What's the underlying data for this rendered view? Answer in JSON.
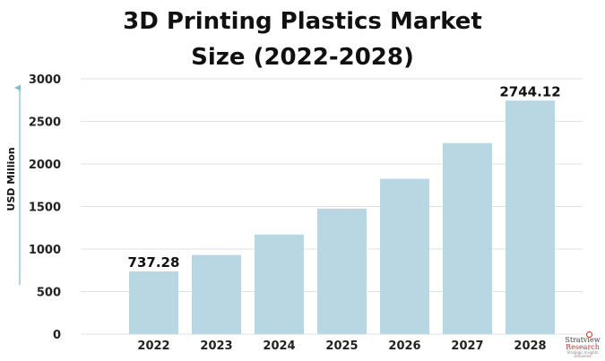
{
  "chart_data": {
    "type": "bar",
    "title_line1": "3D Printing Plastics Market",
    "title_line2": "Size (2022-2028)",
    "ylabel": "USD Million",
    "categories": [
      "2022",
      "2023",
      "2024",
      "2025",
      "2026",
      "2027",
      "2028"
    ],
    "values": [
      737.28,
      930,
      1170,
      1475,
      1825,
      2245,
      2744.12
    ],
    "data_labels": {
      "0": "737.28",
      "6": "2744.12"
    },
    "ylim": [
      0,
      3000
    ],
    "yticks": [
      0,
      500,
      1000,
      1500,
      2000,
      2500,
      3000
    ],
    "bar_color": "#b8d7e3",
    "grid": true
  },
  "logo": {
    "line1": "Stratview",
    "line2": "Research",
    "line3": "Strategic Insights Delivered"
  }
}
